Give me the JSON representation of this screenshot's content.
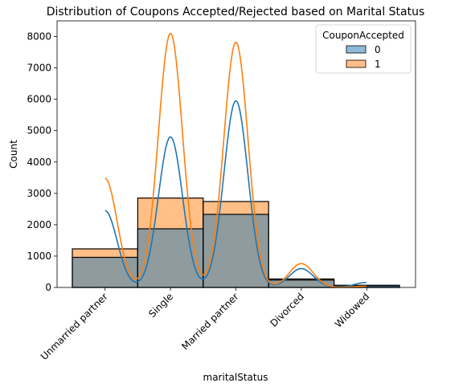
{
  "chart_data": {
    "type": "bar",
    "title": "Distribution of Coupons Accepted/Rejected based on Marital Status",
    "xlabel": "maritalStatus",
    "ylabel": "Count",
    "ylim": [
      0,
      8500
    ],
    "yticks": [
      0,
      1000,
      2000,
      3000,
      4000,
      5000,
      6000,
      7000,
      8000
    ],
    "categories": [
      "Unmarried partner",
      "Single",
      "Married partner",
      "Divorced",
      "Widowed"
    ],
    "series": [
      {
        "name": "0",
        "color": "#1f77b4",
        "values": [
          960,
          1870,
          2330,
          235,
          70
        ],
        "kde": [
          2450,
          4800,
          5950,
          600,
          160
        ]
      },
      {
        "name": "1",
        "color": "#ff7f0e",
        "values": [
          1230,
          2850,
          2740,
          270,
          40
        ],
        "kde": [
          3480,
          8100,
          7820,
          760,
          40
        ]
      }
    ],
    "legend": {
      "title": "CouponAccepted",
      "entries": [
        "0",
        "1"
      ],
      "position": "top-right"
    },
    "grid": false
  }
}
